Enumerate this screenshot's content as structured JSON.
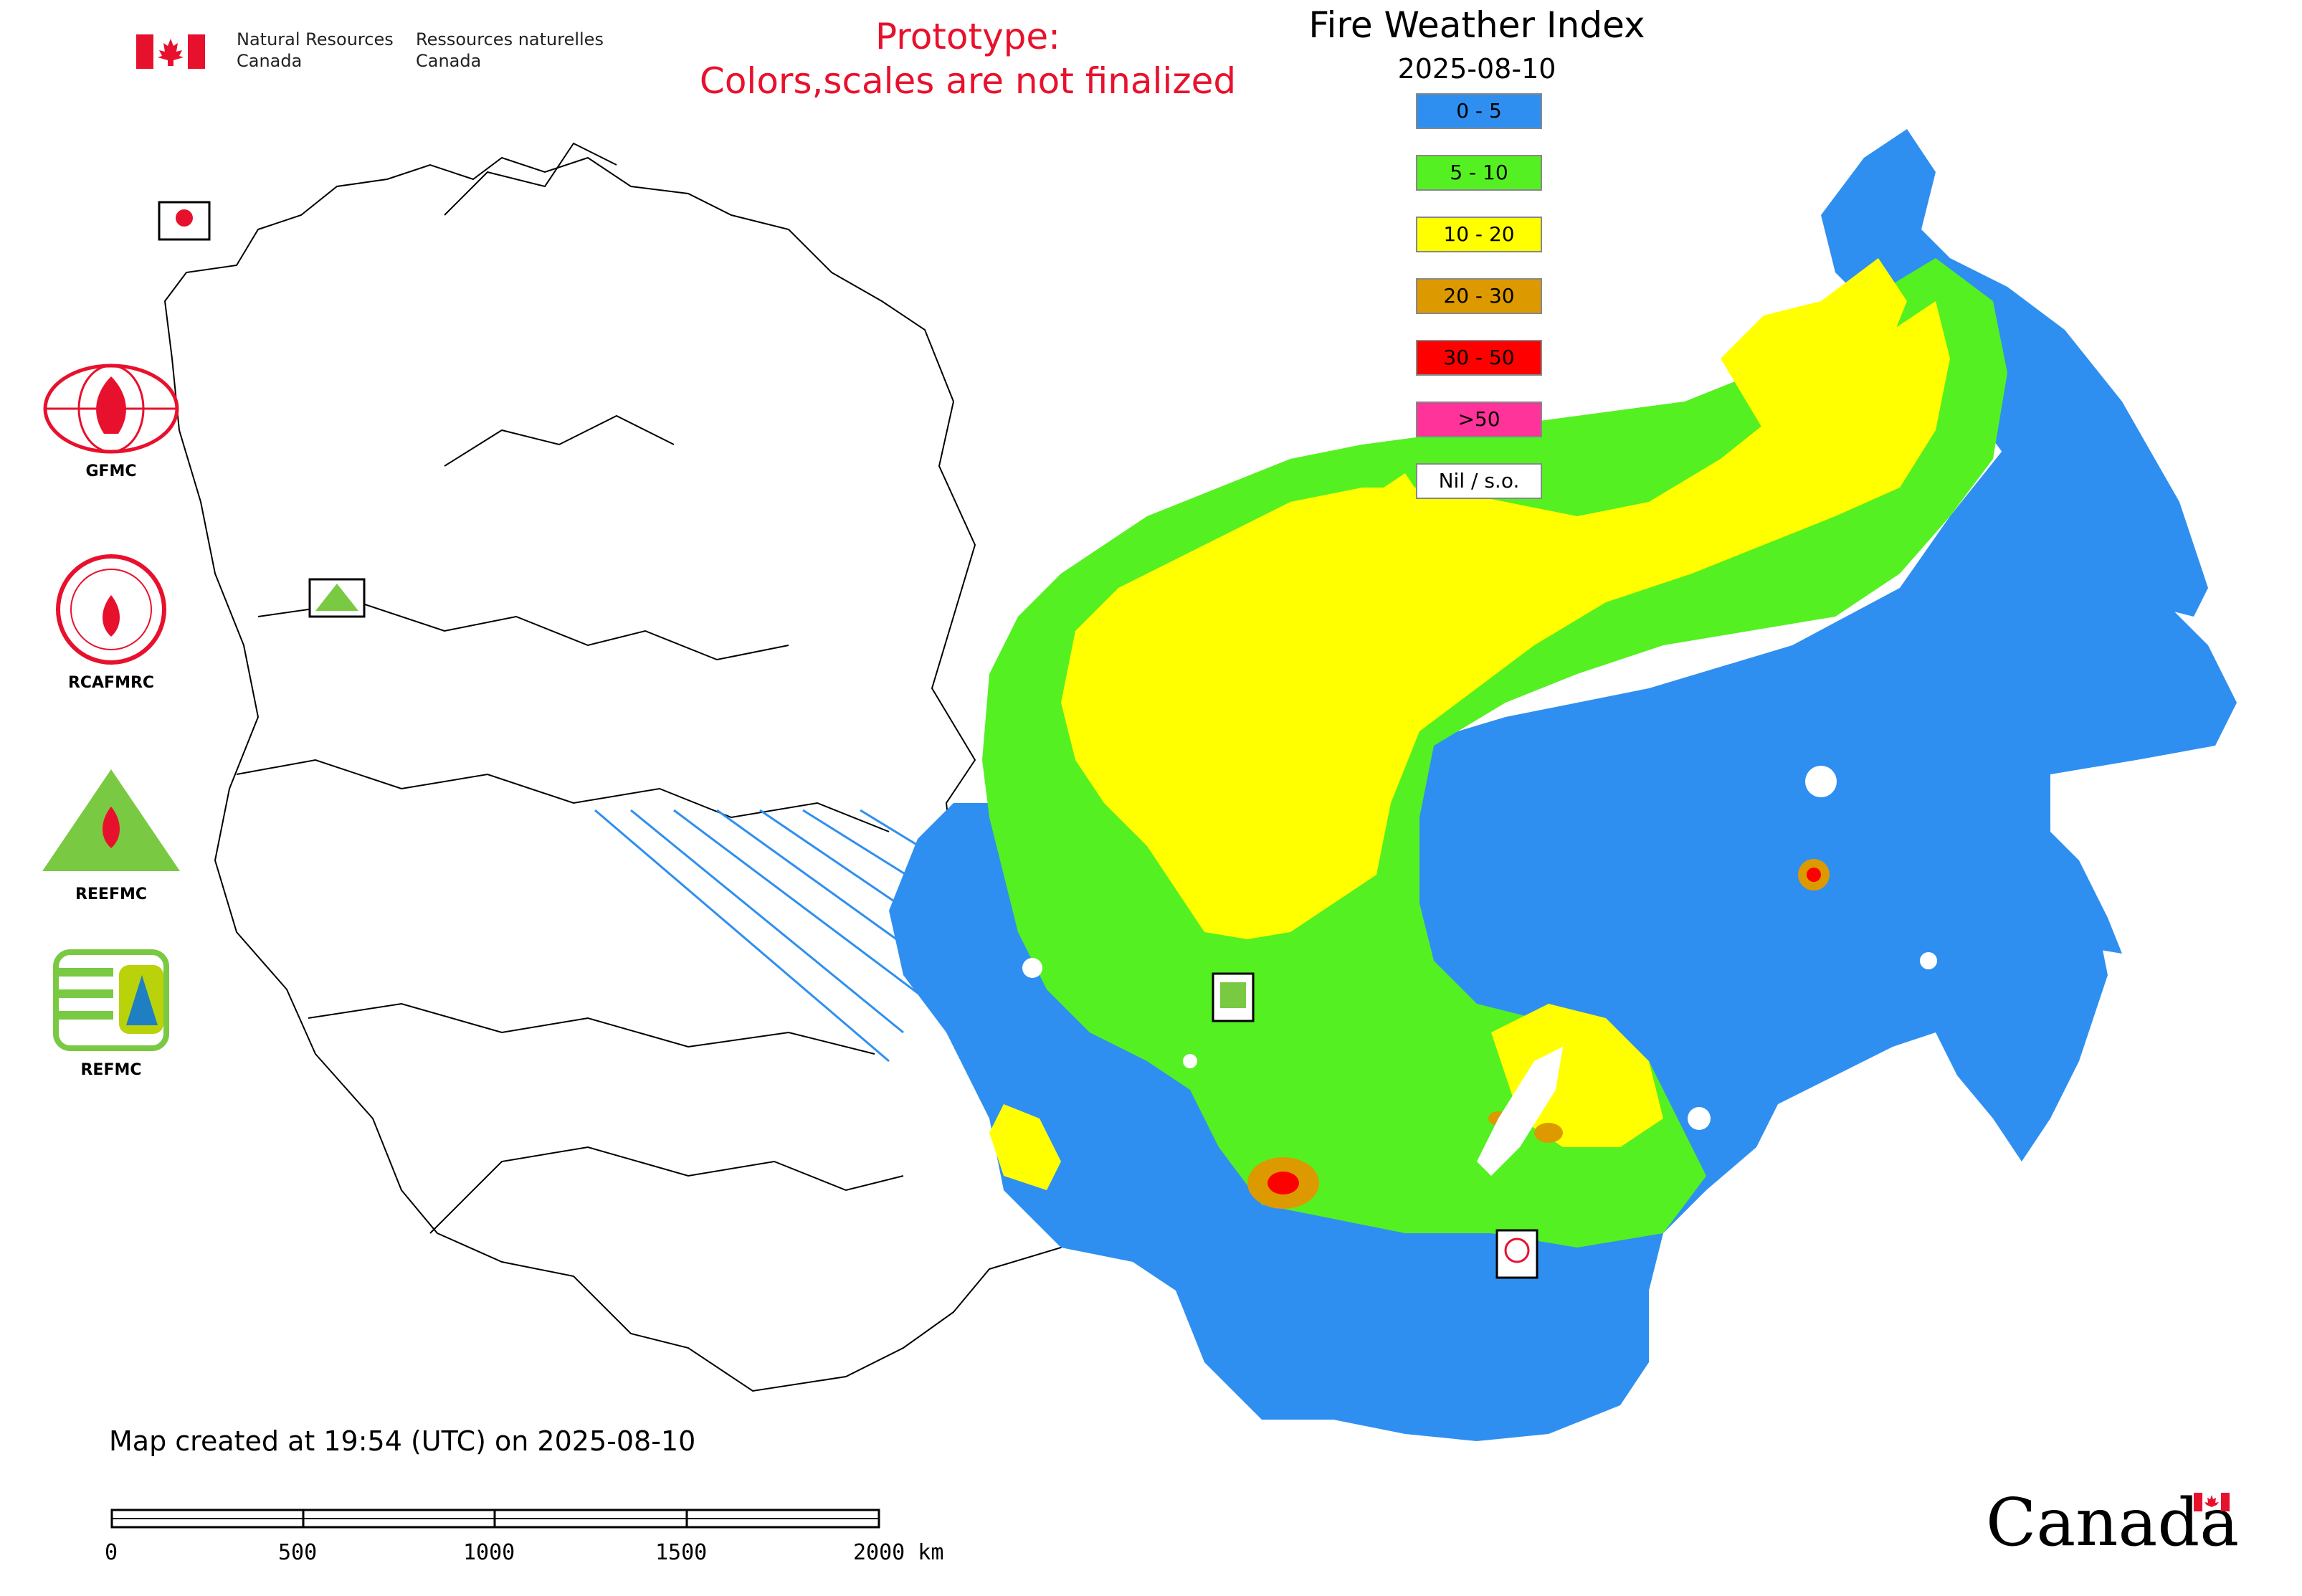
{
  "header": {
    "nrcan_en_line1": "Natural Resources",
    "nrcan_en_line2": "Canada",
    "nrcan_fr_line1": "Ressources naturelles",
    "nrcan_fr_line2": "Canada",
    "prototype_line1": "Prototype:",
    "prototype_line2": "Colors,scales are not finalized",
    "title": "Fire Weather Index",
    "date": "2025-08-10"
  },
  "legend": {
    "items": [
      {
        "label": "0 - 5",
        "color": "#2f8ff0"
      },
      {
        "label": "5 - 10",
        "color": "#55f022"
      },
      {
        "label": "10 - 20",
        "color": "#ffff00"
      },
      {
        "label": "20 - 30",
        "color": "#dd9a00"
      },
      {
        "label": "30 - 50",
        "color": "#ff0000"
      },
      {
        "label": ">50",
        "color": "#ff3399"
      },
      {
        "label": "Nil / s.o.",
        "color": "#ffffff"
      }
    ]
  },
  "logos": {
    "gfmc": "GFMC",
    "rcafmrc": "RCAFMRC",
    "reefmc": "REEFMC",
    "refmc": "REFMC"
  },
  "footer": {
    "created": "Map created at 19:54 (UTC) on 2025-08-10",
    "scale_labels": [
      "0",
      "500",
      "1000",
      "1500",
      "2000 km"
    ],
    "canada": "Canada"
  }
}
